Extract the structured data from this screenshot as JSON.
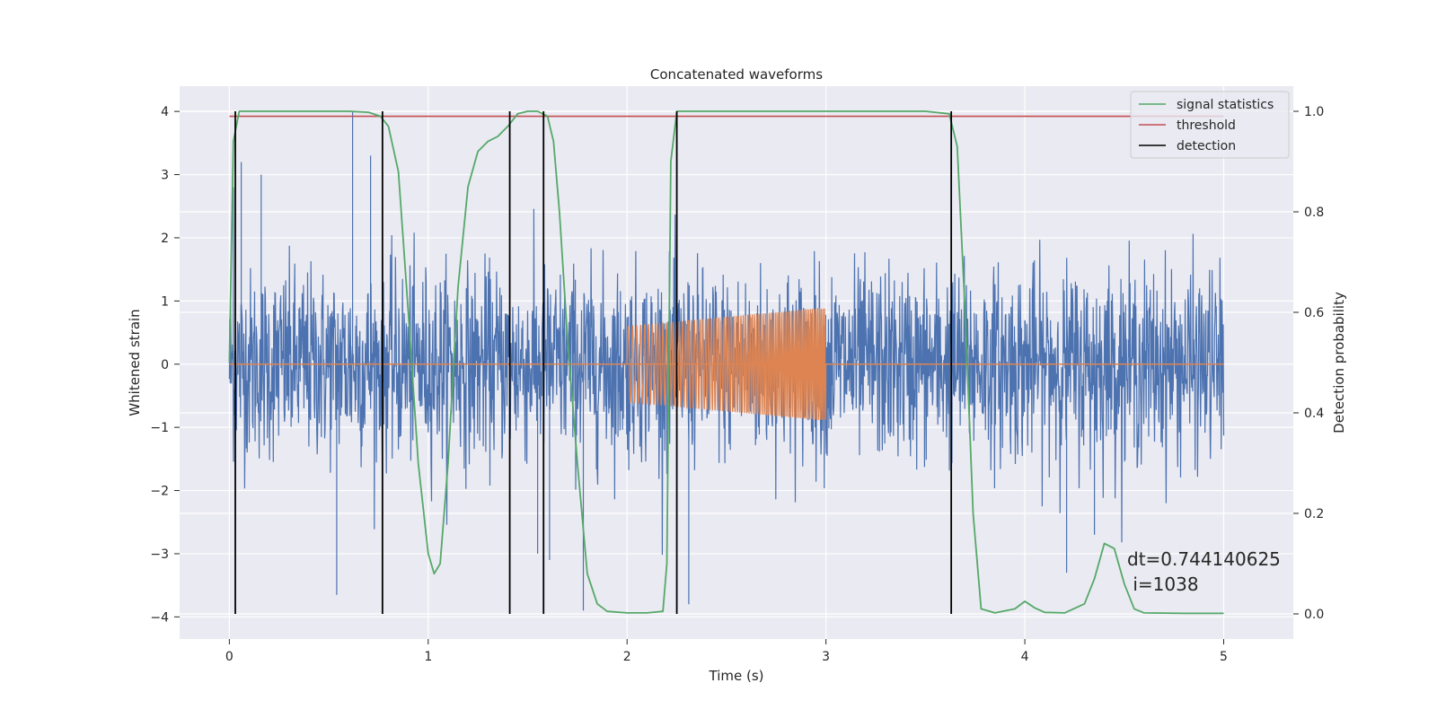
{
  "chart_data": {
    "type": "line",
    "title": "Concatenated waveforms",
    "xlabel": "Time (s)",
    "ylabel_left": "Whitened strain",
    "ylabel_right": "Detection probability",
    "xlim": [
      -0.25,
      5.35
    ],
    "ylim_left": [
      -4.35,
      4.4
    ],
    "ylim_right": [
      -0.05,
      1.05
    ],
    "x_ticks": [
      0,
      1,
      2,
      3,
      4,
      5
    ],
    "x_tick_labels": [
      "0",
      "1",
      "2",
      "3",
      "4",
      "5"
    ],
    "y_left_ticks": [
      -4,
      -3,
      -2,
      -1,
      0,
      1,
      2,
      3,
      4
    ],
    "y_left_tick_labels": [
      "−4",
      "−3",
      "−2",
      "−1",
      "0",
      "1",
      "2",
      "3",
      "4"
    ],
    "y_right_ticks": [
      0.0,
      0.2,
      0.4,
      0.6,
      0.8,
      1.0
    ],
    "y_right_tick_labels": [
      "0.0",
      "0.2",
      "0.4",
      "0.6",
      "0.8",
      "1.0"
    ],
    "grid": true,
    "legend_position": "top-right",
    "series": [
      {
        "name": "signal statistics",
        "axis": "right",
        "color": "#55a868",
        "x": [
          0.0,
          0.02,
          0.05,
          0.1,
          0.2,
          0.4,
          0.6,
          0.7,
          0.76,
          0.8,
          0.85,
          0.9,
          0.95,
          1.0,
          1.03,
          1.06,
          1.1,
          1.15,
          1.2,
          1.25,
          1.3,
          1.35,
          1.4,
          1.45,
          1.5,
          1.55,
          1.6,
          1.63,
          1.66,
          1.7,
          1.75,
          1.8,
          1.85,
          1.9,
          2.0,
          2.1,
          2.18,
          2.2,
          2.22,
          2.25,
          2.3,
          2.5,
          3.0,
          3.5,
          3.62,
          3.66,
          3.7,
          3.74,
          3.78,
          3.85,
          3.95,
          4.0,
          4.05,
          4.1,
          4.2,
          4.3,
          4.35,
          4.4,
          4.45,
          4.5,
          4.55,
          4.6,
          4.8,
          5.0
        ],
        "values": [
          0.5,
          0.94,
          1.0,
          1.0,
          1.0,
          1.0,
          1.0,
          0.998,
          0.99,
          0.97,
          0.88,
          0.6,
          0.3,
          0.12,
          0.08,
          0.1,
          0.3,
          0.65,
          0.85,
          0.92,
          0.94,
          0.95,
          0.97,
          0.995,
          1.0,
          1.0,
          0.99,
          0.94,
          0.8,
          0.55,
          0.3,
          0.08,
          0.02,
          0.005,
          0.002,
          0.002,
          0.005,
          0.1,
          0.9,
          1.0,
          1.0,
          1.0,
          1.0,
          1.0,
          0.995,
          0.93,
          0.6,
          0.2,
          0.01,
          0.002,
          0.01,
          0.025,
          0.012,
          0.003,
          0.002,
          0.02,
          0.07,
          0.14,
          0.13,
          0.06,
          0.01,
          0.002,
          0.001,
          0.001
        ]
      },
      {
        "name": "threshold",
        "axis": "right",
        "color": "#c44e52",
        "x": [
          0.0,
          5.0
        ],
        "values": [
          0.99,
          0.99
        ]
      },
      {
        "name": "detection",
        "axis": "right",
        "color": "#000000",
        "x": [
          0.03,
          0.77,
          1.41,
          1.58,
          2.25,
          3.63
        ],
        "values_from": [
          0.0,
          0.0,
          0.0,
          0.0,
          0.0,
          0.0
        ],
        "values_to": [
          1.0,
          1.0,
          1.0,
          1.0,
          1.0,
          1.0
        ]
      },
      {
        "axis": "left",
        "color": "#4c72b0",
        "style": "noise",
        "x_range": [
          0.0,
          5.0
        ],
        "typical_amplitude": 0.75,
        "peak_values": [
          {
            "x": 0.02,
            "value": 2.8
          },
          {
            "x": 0.06,
            "value": 3.2
          },
          {
            "x": 0.16,
            "value": 3.0
          },
          {
            "x": 0.62,
            "value": 4.0
          },
          {
            "x": 0.71,
            "value": 3.3
          },
          {
            "x": 1.55,
            "value": -3.0
          },
          {
            "x": 1.61,
            "value": -3.1
          },
          {
            "x": 1.78,
            "value": -3.9
          },
          {
            "x": 2.31,
            "value": -3.8
          },
          {
            "x": 0.54,
            "value": -3.65
          },
          {
            "x": 4.21,
            "value": -3.3
          },
          {
            "x": 4.35,
            "value": -2.7
          }
        ]
      },
      {
        "axis": "left",
        "color": "#dd8452",
        "style": "chirp",
        "x_range": [
          2.0,
          3.0
        ],
        "amplitude_start": 0.6,
        "amplitude_end": 0.9,
        "baseline_range": [
          0.0,
          5.0
        ],
        "baseline_value": 0.0
      }
    ],
    "legend": [
      {
        "label": "signal statistics",
        "color": "#55a868"
      },
      {
        "label": "threshold",
        "color": "#c44e52"
      },
      {
        "label": "detection",
        "color": "#000000"
      }
    ],
    "annotation": {
      "line1": "dt=0.744140625",
      "line2": " i=1038",
      "x": 4.5,
      "y": -3.05
    },
    "colors": {
      "plot_background": "#eaeaf2",
      "grid": "#ffffff",
      "noise": "#4c72b0",
      "chirp": "#dd8452",
      "signal_statistics": "#55a868",
      "threshold": "#c44e52",
      "detection": "#000000"
    }
  }
}
